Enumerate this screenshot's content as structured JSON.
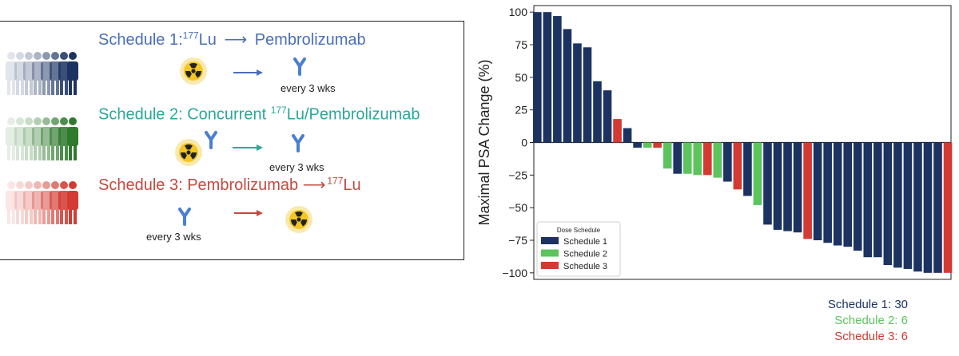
{
  "colors": {
    "schedule1": "#1c3362",
    "schedule2": "#5cc45c",
    "schedule3": "#d33a32",
    "schedule1_title": "#4a6fb8",
    "schedule2_title": "#2aa89a",
    "schedule3_title": "#c24a3e"
  },
  "schema": {
    "schedule1": {
      "prefix": "Schedule 1:",
      "sup": "177",
      "lu": "Lu",
      "arrow": "⟶",
      "rest": "Pembrolizumab",
      "interval": "every 3 wks"
    },
    "schedule2": {
      "prefix": "Schedule 2: Concurrent ",
      "sup": "177",
      "lu": "Lu/Pembrolizumab",
      "interval": "every 3 wks"
    },
    "schedule3": {
      "prefix": "Schedule 3: Pembrolizumab ",
      "arrow": "⟶",
      "sup": "177",
      "lu": "Lu",
      "interval": "every 3 wks"
    }
  },
  "chart_data": {
    "type": "bar",
    "title": "",
    "xlabel": "",
    "ylabel": "Maximal PSA Change (%)",
    "ylim": [
      -105,
      105
    ],
    "yticks": [
      100,
      75,
      50,
      25,
      0,
      -25,
      -50,
      -75,
      -100
    ],
    "ytick_labels": [
      "100",
      "75",
      "50",
      "25",
      "0",
      "−25",
      "−50",
      "−75",
      "−100"
    ],
    "grid": false,
    "legend": {
      "title": "Dose Schedule",
      "placement": "bottom-left",
      "entries": [
        {
          "name": "Schedule 1",
          "series": 1
        },
        {
          "name": "Schedule 2",
          "series": 2
        },
        {
          "name": "Schedule 3",
          "series": 3
        }
      ]
    },
    "bars": [
      {
        "value": 100,
        "series": 1
      },
      {
        "value": 100,
        "series": 1
      },
      {
        "value": 97,
        "series": 1
      },
      {
        "value": 87,
        "series": 1
      },
      {
        "value": 76,
        "series": 1
      },
      {
        "value": 73,
        "series": 1
      },
      {
        "value": 47,
        "series": 1
      },
      {
        "value": 40,
        "series": 1
      },
      {
        "value": 18,
        "series": 3
      },
      {
        "value": 11,
        "series": 1
      },
      {
        "value": -4,
        "series": 1
      },
      {
        "value": -4,
        "series": 2
      },
      {
        "value": -4,
        "series": 3
      },
      {
        "value": -20,
        "series": 2
      },
      {
        "value": -24,
        "series": 1
      },
      {
        "value": -24,
        "series": 2
      },
      {
        "value": -25,
        "series": 2
      },
      {
        "value": -25,
        "series": 3
      },
      {
        "value": -27,
        "series": 2
      },
      {
        "value": -30,
        "series": 1
      },
      {
        "value": -36,
        "series": 3
      },
      {
        "value": -41,
        "series": 1
      },
      {
        "value": -48,
        "series": 2
      },
      {
        "value": -63,
        "series": 1
      },
      {
        "value": -67,
        "series": 1
      },
      {
        "value": -68,
        "series": 1
      },
      {
        "value": -69,
        "series": 1
      },
      {
        "value": -74,
        "series": 3
      },
      {
        "value": -75,
        "series": 1
      },
      {
        "value": -77,
        "series": 1
      },
      {
        "value": -79,
        "series": 1
      },
      {
        "value": -80,
        "series": 1
      },
      {
        "value": -83,
        "series": 1
      },
      {
        "value": -88,
        "series": 1
      },
      {
        "value": -88,
        "series": 1
      },
      {
        "value": -94,
        "series": 1
      },
      {
        "value": -96,
        "series": 1
      },
      {
        "value": -97,
        "series": 1
      },
      {
        "value": -99,
        "series": 1
      },
      {
        "value": -100,
        "series": 1
      },
      {
        "value": -100,
        "series": 1
      },
      {
        "value": -100,
        "series": 3
      }
    ]
  },
  "counts": [
    {
      "label": "Schedule 1: 30",
      "series": 1
    },
    {
      "label": "Schedule 2: 6",
      "series": 2
    },
    {
      "label": "Schedule 3: 6",
      "series": 3
    }
  ]
}
